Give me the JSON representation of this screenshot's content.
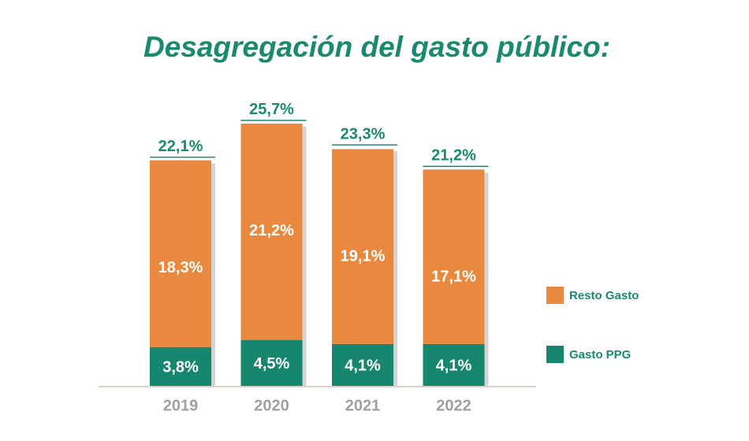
{
  "chart_data": {
    "type": "stacked-bar",
    "title": "Desagregación del gasto público:",
    "categories": [
      "2019",
      "2020",
      "2021",
      "2022"
    ],
    "series": [
      {
        "name": "Gasto PPG",
        "color": "#16876e",
        "values": [
          3.8,
          4.5,
          4.1,
          4.1
        ],
        "value_labels": [
          "3,8%",
          "4,5%",
          "4,1%",
          "4,1%"
        ]
      },
      {
        "name": "Resto Gasto",
        "color": "#e8893f",
        "values": [
          18.3,
          21.2,
          19.1,
          17.1
        ],
        "value_labels": [
          "18,3%",
          "21,2%",
          "19,1%",
          "17,1%"
        ]
      }
    ],
    "totals": [
      22.1,
      25.7,
      23.3,
      21.2
    ],
    "total_labels": [
      "22,1%",
      "25,7%",
      "23,3%",
      "21,2%"
    ],
    "legend": "right"
  }
}
